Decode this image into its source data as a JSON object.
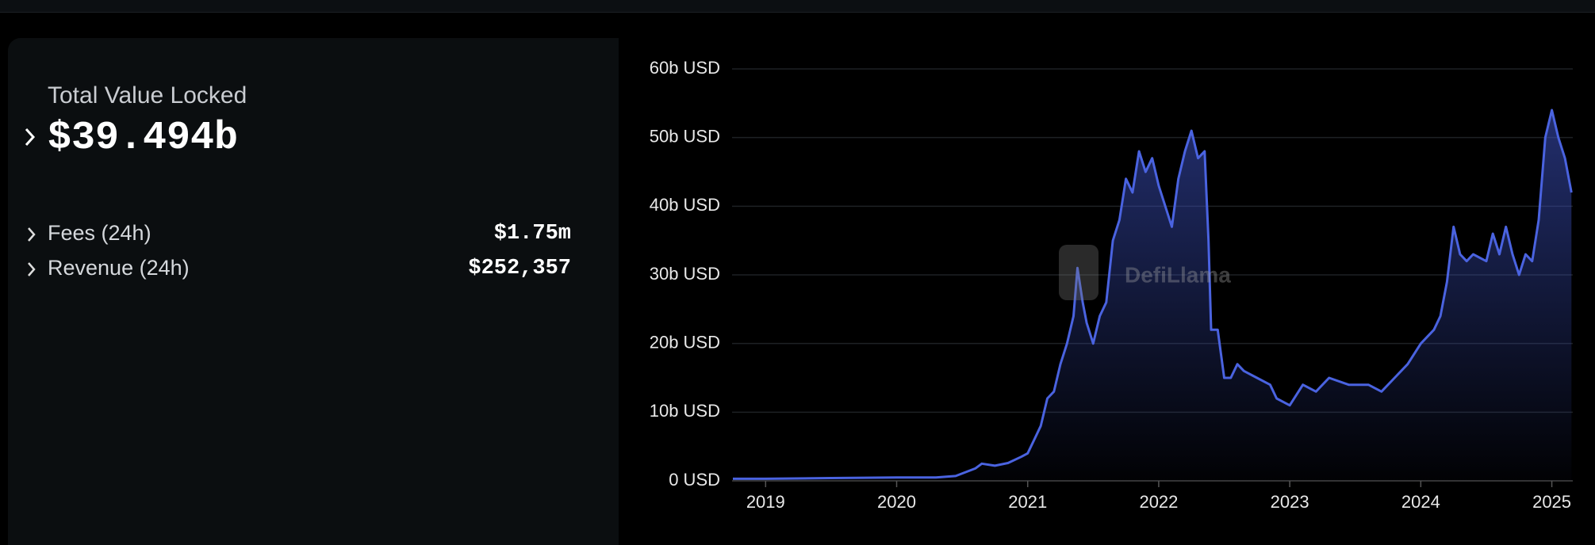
{
  "stats": {
    "tvl_label": "Total Value Locked",
    "tvl_value": "$39.494b",
    "rows": [
      {
        "label": "Fees (24h)",
        "value": "$1.75m"
      },
      {
        "label": "Revenue (24h)",
        "value": "$252,357"
      }
    ]
  },
  "chart_data": {
    "type": "line",
    "watermark": "DefiLlama",
    "color": "#4a63e0",
    "grid": true,
    "x": [
      2018.75,
      2019.0,
      2019.5,
      2020.0,
      2020.3,
      2020.45,
      2020.6,
      2020.65,
      2020.75,
      2020.85,
      2020.95,
      2021.0,
      2021.05,
      2021.1,
      2021.15,
      2021.2,
      2021.25,
      2021.3,
      2021.35,
      2021.38,
      2021.42,
      2021.45,
      2021.5,
      2021.55,
      2021.6,
      2021.65,
      2021.7,
      2021.75,
      2021.8,
      2021.85,
      2021.9,
      2021.95,
      2022.0,
      2022.05,
      2022.1,
      2022.15,
      2022.2,
      2022.25,
      2022.3,
      2022.35,
      2022.38,
      2022.4,
      2022.45,
      2022.5,
      2022.55,
      2022.6,
      2022.65,
      2022.75,
      2022.85,
      2022.9,
      2023.0,
      2023.1,
      2023.2,
      2023.3,
      2023.45,
      2023.6,
      2023.7,
      2023.8,
      2023.9,
      2024.0,
      2024.1,
      2024.15,
      2024.2,
      2024.25,
      2024.3,
      2024.35,
      2024.4,
      2024.5,
      2024.55,
      2024.6,
      2024.65,
      2024.7,
      2024.75,
      2024.8,
      2024.85,
      2024.9,
      2024.95,
      2025.0,
      2025.05,
      2025.1,
      2025.15
    ],
    "values": [
      0.3,
      0.3,
      0.4,
      0.5,
      0.5,
      0.7,
      1.8,
      2.5,
      2.2,
      2.6,
      3.5,
      4,
      6,
      8,
      12,
      13,
      17,
      20,
      24,
      31,
      26,
      23,
      20,
      24,
      26,
      35,
      38,
      44,
      42,
      48,
      45,
      47,
      43,
      40,
      37,
      44,
      48,
      51,
      47,
      48,
      35,
      22,
      22,
      15,
      15,
      17,
      16,
      15,
      14,
      12,
      11,
      14,
      13,
      15,
      14,
      14,
      13,
      15,
      17,
      20,
      22,
      24,
      29,
      37,
      33,
      32,
      33,
      32,
      36,
      33,
      37,
      33,
      30,
      33,
      32,
      38,
      50,
      54,
      50,
      47,
      42
    ],
    "xlim": [
      2018.744,
      2025.16
    ],
    "xticks": [
      2019,
      2020,
      2021,
      2022,
      2023,
      2024,
      2025
    ],
    "ylim": [
      0,
      60
    ],
    "yticks": [
      {
        "value": 0,
        "label": "0 USD"
      },
      {
        "value": 10,
        "label": "10b USD"
      },
      {
        "value": 20,
        "label": "20b USD"
      },
      {
        "value": 30,
        "label": "30b USD"
      },
      {
        "value": 40,
        "label": "40b USD"
      },
      {
        "value": 50,
        "label": "50b USD"
      },
      {
        "value": 60,
        "label": "60b USD"
      }
    ]
  }
}
